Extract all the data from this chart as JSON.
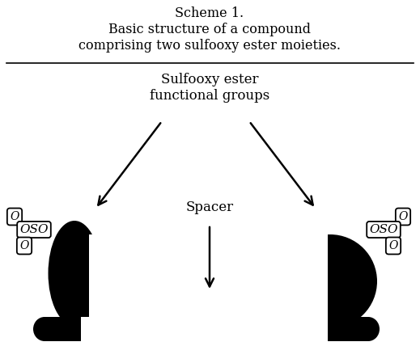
{
  "title_line1": "Scheme 1.",
  "title_line2": "Basic structure of a compound",
  "title_line3": "comprising two sulfooxy ester moieties.",
  "label_sulfooxy_line1": "Sulfooxy ester",
  "label_sulfooxy_line2": "functional groups",
  "label_spacer": "Spacer",
  "bg_color": "#ffffff",
  "fg_color": "#000000",
  "title_fontsize": 11.5,
  "label_fontsize": 12,
  "oso_fontsize": 11,
  "o_fontsize": 10
}
